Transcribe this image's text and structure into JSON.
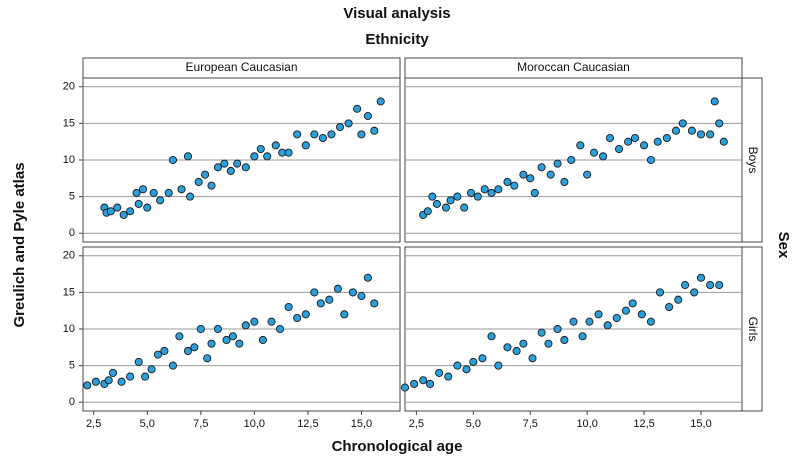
{
  "chart_data": {
    "type": "scatter",
    "title": "Visual analysis",
    "column_title": "Ethnicity",
    "row_title": "Sex",
    "columns": [
      "European Caucasian",
      "Moroccan Caucasian"
    ],
    "rows": [
      "Boys",
      "Girls"
    ],
    "xlabel": "Chronological age",
    "ylabel": "Greulich and Pyle atlas",
    "color": "#2a9fdc",
    "grid": true,
    "xlim": [
      2.0,
      16.8
    ],
    "ylim": [
      -1.2,
      21.2
    ],
    "xticks": [
      {
        "value": 2.5,
        "label": "2,5"
      },
      {
        "value": 5.0,
        "label": "5,0"
      },
      {
        "value": 7.5,
        "label": "7,5"
      },
      {
        "value": 10.0,
        "label": "10,0"
      },
      {
        "value": 12.5,
        "label": "12,5"
      },
      {
        "value": 15.0,
        "label": "15,0"
      }
    ],
    "yticks": [
      0,
      5,
      10,
      15,
      20
    ],
    "panels": [
      {
        "x": [
          3.0,
          3.1,
          3.3,
          3.6,
          3.9,
          4.2,
          4.5,
          4.6,
          4.8,
          5.0,
          5.3,
          5.6,
          6.0,
          6.2,
          6.6,
          6.9,
          7.0,
          7.4,
          7.7,
          8.0,
          8.3,
          8.6,
          8.9,
          9.2,
          9.6,
          10.0,
          10.3,
          10.6,
          11.0,
          11.3,
          11.6,
          12.0,
          12.4,
          12.8,
          13.2,
          13.6,
          14.0,
          14.4,
          14.8,
          15.0,
          15.3,
          15.6,
          15.9
        ],
        "y": [
          3.5,
          2.8,
          3.0,
          3.5,
          2.5,
          3.0,
          5.5,
          4.0,
          6.0,
          3.5,
          5.5,
          4.5,
          5.5,
          10.0,
          6.0,
          10.5,
          5.0,
          7.0,
          8.0,
          6.5,
          9.0,
          9.5,
          8.5,
          9.5,
          9.0,
          10.5,
          11.5,
          10.5,
          12.0,
          11.0,
          11.0,
          13.5,
          12.0,
          13.5,
          13.0,
          13.5,
          14.5,
          15.0,
          17.0,
          13.5,
          16.0,
          14.0,
          18.0
        ]
      },
      {
        "x": [
          2.8,
          3.0,
          3.2,
          3.4,
          3.8,
          4.0,
          4.3,
          4.6,
          4.9,
          5.2,
          5.5,
          5.8,
          6.1,
          6.5,
          6.8,
          7.2,
          7.5,
          7.7,
          8.0,
          8.4,
          8.7,
          9.0,
          9.3,
          9.7,
          10.0,
          10.3,
          10.7,
          11.0,
          11.4,
          11.8,
          12.1,
          12.5,
          12.8,
          13.1,
          13.5,
          13.9,
          14.2,
          14.6,
          15.0,
          15.4,
          15.6,
          15.8,
          16.0
        ],
        "y": [
          2.5,
          3.0,
          5.0,
          4.0,
          3.5,
          4.5,
          5.0,
          3.5,
          5.5,
          5.0,
          6.0,
          5.5,
          6.0,
          7.0,
          6.5,
          8.0,
          7.5,
          5.5,
          9.0,
          8.0,
          9.5,
          7.0,
          10.0,
          12.0,
          8.0,
          11.0,
          10.5,
          13.0,
          11.5,
          12.5,
          13.0,
          12.0,
          10.0,
          12.5,
          13.0,
          14.0,
          15.0,
          14.0,
          13.5,
          13.5,
          18.0,
          15.0,
          12.5
        ]
      },
      {
        "x": [
          2.2,
          2.6,
          3.0,
          3.2,
          3.4,
          3.8,
          4.2,
          4.6,
          4.9,
          5.2,
          5.5,
          5.8,
          6.2,
          6.5,
          6.9,
          7.2,
          7.5,
          7.8,
          8.0,
          8.3,
          8.7,
          9.0,
          9.3,
          9.6,
          10.0,
          10.4,
          10.8,
          11.2,
          11.6,
          12.0,
          12.4,
          12.8,
          13.1,
          13.5,
          13.9,
          14.2,
          14.6,
          15.0,
          15.3,
          15.6
        ],
        "y": [
          2.3,
          2.8,
          2.5,
          3.0,
          4.0,
          2.8,
          3.5,
          5.5,
          3.5,
          4.5,
          6.5,
          7.0,
          5.0,
          9.0,
          7.0,
          7.5,
          10.0,
          6.0,
          8.0,
          10.0,
          8.5,
          9.0,
          8.0,
          10.5,
          11.0,
          8.5,
          11.0,
          10.0,
          13.0,
          11.5,
          12.0,
          15.0,
          13.5,
          14.0,
          15.5,
          12.0,
          15.0,
          14.5,
          17.0,
          13.5
        ]
      },
      {
        "x": [
          2.0,
          2.4,
          2.8,
          3.1,
          3.5,
          3.9,
          4.3,
          4.7,
          5.0,
          5.4,
          5.8,
          6.1,
          6.5,
          6.9,
          7.2,
          7.6,
          8.0,
          8.3,
          8.7,
          9.0,
          9.4,
          9.8,
          10.1,
          10.5,
          10.9,
          11.3,
          11.7,
          12.0,
          12.4,
          12.8,
          13.2,
          13.6,
          14.0,
          14.3,
          14.7,
          15.0,
          15.4,
          15.8
        ],
        "y": [
          2.0,
          2.5,
          3.0,
          2.5,
          4.0,
          3.5,
          5.0,
          4.5,
          5.5,
          6.0,
          9.0,
          5.0,
          7.5,
          7.0,
          8.0,
          6.0,
          9.5,
          8.0,
          10.0,
          8.5,
          11.0,
          9.0,
          11.0,
          12.0,
          10.5,
          11.5,
          12.5,
          13.5,
          12.0,
          11.0,
          15.0,
          13.0,
          14.0,
          16.0,
          15.0,
          17.0,
          16.0,
          16.0
        ]
      }
    ]
  }
}
